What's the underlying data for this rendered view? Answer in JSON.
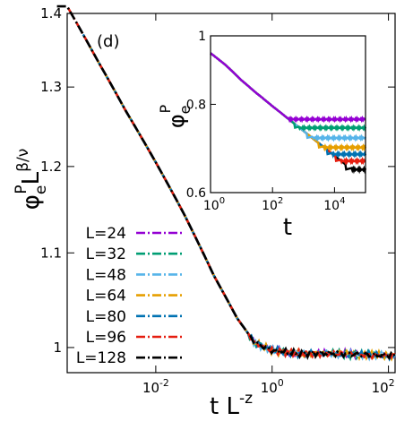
{
  "chart_data": [
    {
      "type": "line",
      "panel_label": "(d)",
      "xlabel": {
        "base": "t L",
        "sup": "-z"
      },
      "ylabel": {
        "base": "φ",
        "sub": "e",
        "sup1": "P",
        "mid": "L",
        "sup2": "β/ν"
      },
      "xscale": "log",
      "yscale": "log",
      "xlim": [
        0.0003,
        130
      ],
      "ylim": [
        0.975,
        1.4
      ],
      "x_ticks": [
        {
          "v": 0.01,
          "m": "10",
          "e": "-2"
        },
        {
          "v": 1,
          "m": "10",
          "e": "0"
        },
        {
          "v": 100,
          "m": "10",
          "e": "2"
        }
      ],
      "y_ticks": [
        {
          "v": 1.0,
          "label": "1"
        },
        {
          "v": 1.1,
          "label": "1.1"
        },
        {
          "v": 1.2,
          "label": "1.2"
        },
        {
          "v": 1.3,
          "label": "1.3"
        },
        {
          "v": 1.4,
          "label": "1.4"
        }
      ],
      "grid": false,
      "legend_position": "bottom-left",
      "collapse_points": [
        [
          0.0003,
          1.41
        ],
        [
          0.001,
          1.335
        ],
        [
          0.003,
          1.27
        ],
        [
          0.01,
          1.205
        ],
        [
          0.03,
          1.145
        ],
        [
          0.1,
          1.075
        ],
        [
          0.25,
          1.03
        ],
        [
          0.5,
          1.005
        ],
        [
          1,
          0.997
        ],
        [
          3,
          0.994
        ],
        [
          10,
          0.994
        ],
        [
          30,
          0.993
        ],
        [
          100,
          0.992
        ]
      ],
      "series": [
        {
          "name": "L=24",
          "color": "#9400d3",
          "x_start": 0.0065
        },
        {
          "name": "L=32",
          "color": "#009e73",
          "x_start": 0.0028
        },
        {
          "name": "L=48",
          "color": "#56b4e9",
          "x_start": 0.0012
        },
        {
          "name": "L=64",
          "color": "#e69f00",
          "x_start": 0.00075
        },
        {
          "name": "L=80",
          "color": "#0072b2",
          "x_start": 0.00045
        },
        {
          "name": "L=96",
          "color": "#e51e10",
          "x_start": 0.00031
        },
        {
          "name": "L=128",
          "color": "#000000",
          "x_start": 0.0002
        }
      ]
    },
    {
      "type": "line",
      "role": "inset",
      "xlabel": "t",
      "ylabel": {
        "base": "φ",
        "sub": "e",
        "sup": "P"
      },
      "xscale": "log",
      "yscale": "log",
      "xlim": [
        1,
        100000
      ],
      "ylim": [
        0.6,
        1.0
      ],
      "x_ticks": [
        {
          "v": 1,
          "m": "10",
          "e": "0"
        },
        {
          "v": 100,
          "m": "10",
          "e": "2"
        },
        {
          "v": 10000,
          "m": "10",
          "e": "4"
        }
      ],
      "y_ticks": [
        {
          "v": 0.6,
          "label": "0.6"
        },
        {
          "v": 0.8,
          "label": "0.8"
        },
        {
          "v": 1.0,
          "label": "1"
        }
      ],
      "grid": false,
      "early_decay": [
        [
          1,
          0.945
        ],
        [
          3,
          0.91
        ],
        [
          10,
          0.865
        ],
        [
          30,
          0.83
        ],
        [
          100,
          0.795
        ],
        [
          300,
          0.765
        ]
      ],
      "series": [
        {
          "name": "L=24",
          "color": "#9400d3",
          "plateau": 0.762
        },
        {
          "name": "L=32",
          "color": "#009e73",
          "plateau": 0.741
        },
        {
          "name": "L=48",
          "color": "#56b4e9",
          "plateau": 0.717
        },
        {
          "name": "L=64",
          "color": "#e69f00",
          "plateau": 0.695
        },
        {
          "name": "L=80",
          "color": "#0072b2",
          "plateau": 0.68
        },
        {
          "name": "L=96",
          "color": "#e51e10",
          "plateau": 0.665
        },
        {
          "name": "L=128",
          "color": "#000000",
          "plateau": 0.647
        }
      ]
    }
  ]
}
